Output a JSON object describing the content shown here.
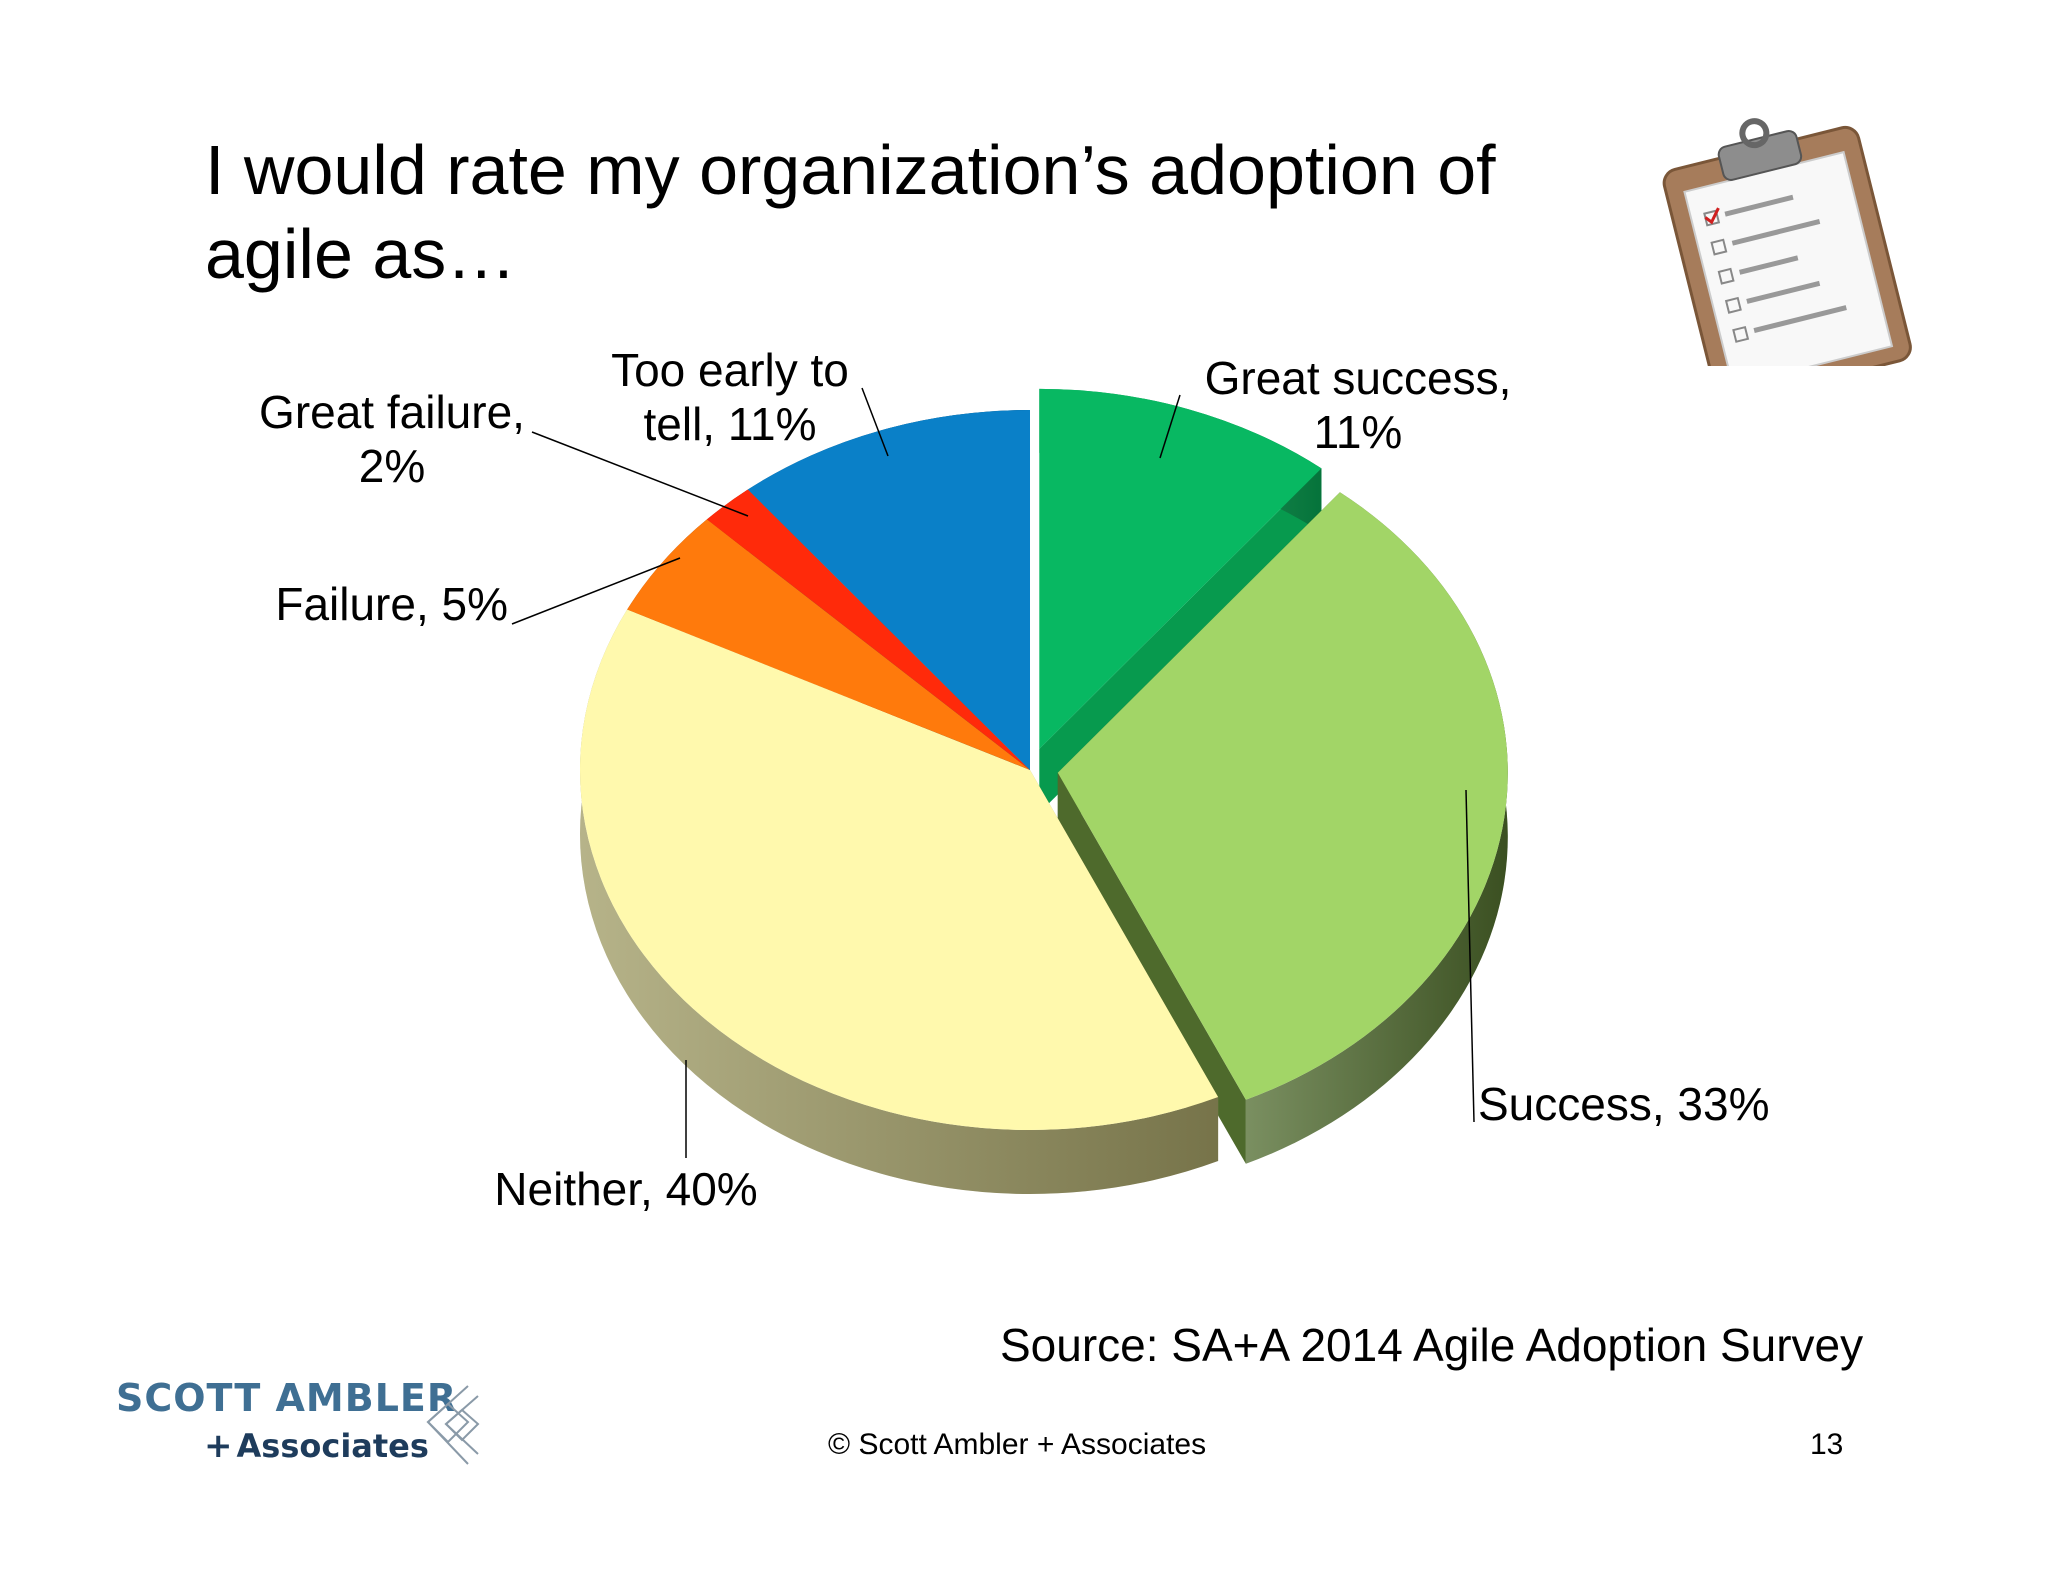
{
  "slide": {
    "title_line1": "I would rate my organization’s adoption of",
    "title_line2": "agile as…",
    "source": "Source: SA+A 2014 Agile Adoption Survey",
    "copyright": "© Scott Ambler + Associates",
    "page_number": "13"
  },
  "logo": {
    "line1": "SCOTT AMBLER",
    "plus": "+",
    "line2": "Associates"
  },
  "chart_data": {
    "type": "pie",
    "style": "3d-exploded",
    "title": "I would rate my organization’s adoption of agile as…",
    "slices": [
      {
        "label": "Great success",
        "value": 11,
        "color": "#08b862",
        "side": "#079a4e",
        "exploded": true,
        "label_lines": [
          "Great success,",
          "11%"
        ]
      },
      {
        "label": "Success",
        "value": 33,
        "color": "#a2d567",
        "side": "#4e6a2c",
        "exploded": true,
        "label_lines": [
          "Success, 33%"
        ]
      },
      {
        "label": "Neither",
        "value": 40,
        "color": "#fff9ad",
        "side": "#9e9a62",
        "exploded": false,
        "label_lines": [
          "Neither, 40%"
        ]
      },
      {
        "label": "Failure",
        "value": 5,
        "color": "#ff7a0c",
        "side": "#7a3300",
        "exploded": false,
        "label_lines": [
          "Failure, 5%"
        ]
      },
      {
        "label": "Great failure",
        "value": 2,
        "color": "#ff2a0a",
        "side": "#8a1400",
        "exploded": false,
        "label_lines": [
          "Great failure,",
          "2%"
        ]
      },
      {
        "label": "Too early to tell",
        "value": 11,
        "color": "#0a80c8",
        "side": "#084c78",
        "exploded": false,
        "label_lines": [
          "Too early to",
          "tell, 11%"
        ]
      }
    ]
  }
}
